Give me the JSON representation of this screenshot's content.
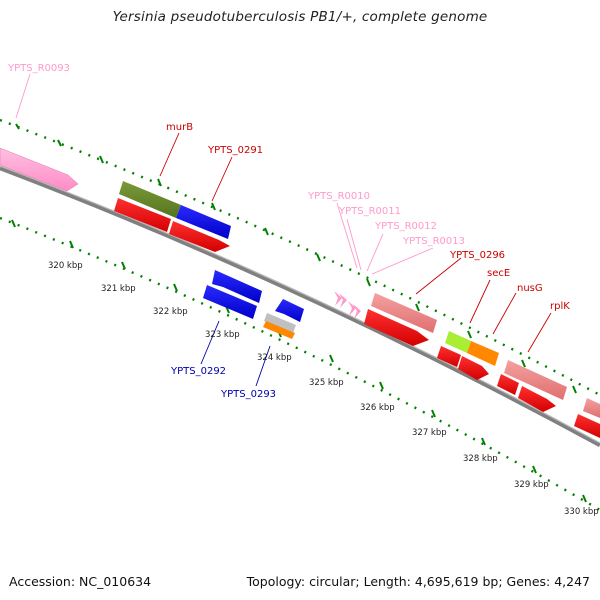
{
  "title": "Yersinia pseudotuberculosis PB1/+, complete genome",
  "footer": {
    "accession": "Accession: NC_010634",
    "stats": "Topology: circular; Length: 4,695,619 bp; Genes: 4,247"
  },
  "colors": {
    "rna": "#ff99cc",
    "red_label": "#cc0000",
    "blue_label": "#0000aa",
    "tick": "#008000",
    "backbone": "#808080"
  },
  "scale_labels": [
    "320 kbp",
    "321 kbp",
    "322 kbp",
    "323 kbp",
    "324 kbp",
    "325 kbp",
    "326 kbp",
    "327 kbp",
    "328 kbp",
    "329 kbp",
    "330 kbp"
  ],
  "gene_labels": [
    {
      "id": "lbl-r0093",
      "text": "YPTS_R0093",
      "color": "rna"
    },
    {
      "id": "lbl-murb",
      "text": "murB",
      "color": "red_label"
    },
    {
      "id": "lbl-0291",
      "text": "YPTS_0291",
      "color": "red_label"
    },
    {
      "id": "lbl-r0010",
      "text": "YPTS_R0010",
      "color": "rna"
    },
    {
      "id": "lbl-r0011",
      "text": "YPTS_R0011",
      "color": "rna"
    },
    {
      "id": "lbl-r0012",
      "text": "YPTS_R0012",
      "color": "rna"
    },
    {
      "id": "lbl-r0013",
      "text": "YPTS_R0013",
      "color": "rna"
    },
    {
      "id": "lbl-0296",
      "text": "YPTS_0296",
      "color": "red_label"
    },
    {
      "id": "lbl-sece",
      "text": "secE",
      "color": "red_label"
    },
    {
      "id": "lbl-nusg",
      "text": "nusG",
      "color": "red_label"
    },
    {
      "id": "lbl-rplk",
      "text": "rplK",
      "color": "red_label"
    },
    {
      "id": "lbl-0292",
      "text": "YPTS_0292",
      "color": "blue_label"
    },
    {
      "id": "lbl-0293",
      "text": "YPTS_0293",
      "color": "blue_label"
    }
  ]
}
